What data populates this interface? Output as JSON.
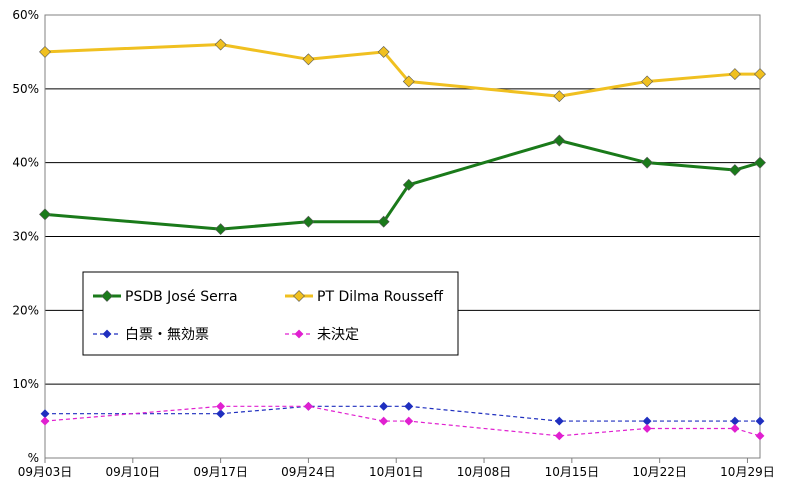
{
  "chart_data": {
    "type": "line",
    "title": "",
    "xlabel": "",
    "ylabel": "",
    "ylim": [
      0,
      60
    ],
    "y_ticks": [
      "%",
      "10%",
      "20%",
      "30%",
      "40%",
      "50%",
      "60%"
    ],
    "x_ticks": [
      "09月03日",
      "09月10日",
      "09月17日",
      "09月24日",
      "10月01日",
      "10月08日",
      "10月15日",
      "10月22日",
      "10月29日"
    ],
    "x_range": [
      "09-03",
      "10-30"
    ],
    "grid": "horizontal",
    "legend_position": "left-middle",
    "series": [
      {
        "name": "PSDB José Serra",
        "color": "#1a7a1a",
        "marker": "diamond",
        "dash": "solid",
        "points": [
          {
            "x": "09-03",
            "y": 33
          },
          {
            "x": "09-17",
            "y": 31
          },
          {
            "x": "09-24",
            "y": 32
          },
          {
            "x": "09-30",
            "y": 32
          },
          {
            "x": "10-02",
            "y": 37
          },
          {
            "x": "10-14",
            "y": 43
          },
          {
            "x": "10-21",
            "y": 40
          },
          {
            "x": "10-28",
            "y": 39
          },
          {
            "x": "10-30",
            "y": 40
          }
        ]
      },
      {
        "name": "PT Dilma Rousseff",
        "color": "#f0c020",
        "marker": "diamond",
        "dash": "solid",
        "points": [
          {
            "x": "09-03",
            "y": 55
          },
          {
            "x": "09-17",
            "y": 56
          },
          {
            "x": "09-24",
            "y": 54
          },
          {
            "x": "09-30",
            "y": 55
          },
          {
            "x": "10-02",
            "y": 51
          },
          {
            "x": "10-14",
            "y": 49
          },
          {
            "x": "10-21",
            "y": 51
          },
          {
            "x": "10-28",
            "y": 52
          },
          {
            "x": "10-30",
            "y": 52
          }
        ]
      },
      {
        "name": "白票・無効票",
        "color": "#1f2fbf",
        "marker": "diamond",
        "dash": "dashed",
        "points": [
          {
            "x": "09-03",
            "y": 6
          },
          {
            "x": "09-17",
            "y": 6
          },
          {
            "x": "09-24",
            "y": 7
          },
          {
            "x": "09-30",
            "y": 7
          },
          {
            "x": "10-02",
            "y": 7
          },
          {
            "x": "10-14",
            "y": 5
          },
          {
            "x": "10-21",
            "y": 5
          },
          {
            "x": "10-28",
            "y": 5
          },
          {
            "x": "10-30",
            "y": 5
          }
        ]
      },
      {
        "name": "未決定",
        "color": "#e020d0",
        "marker": "diamond",
        "dash": "dashed",
        "points": [
          {
            "x": "09-03",
            "y": 5
          },
          {
            "x": "09-17",
            "y": 7
          },
          {
            "x": "09-24",
            "y": 7
          },
          {
            "x": "09-30",
            "y": 5
          },
          {
            "x": "10-02",
            "y": 5
          },
          {
            "x": "10-14",
            "y": 3
          },
          {
            "x": "10-21",
            "y": 4
          },
          {
            "x": "10-28",
            "y": 4
          },
          {
            "x": "10-30",
            "y": 3
          }
        ]
      }
    ]
  }
}
